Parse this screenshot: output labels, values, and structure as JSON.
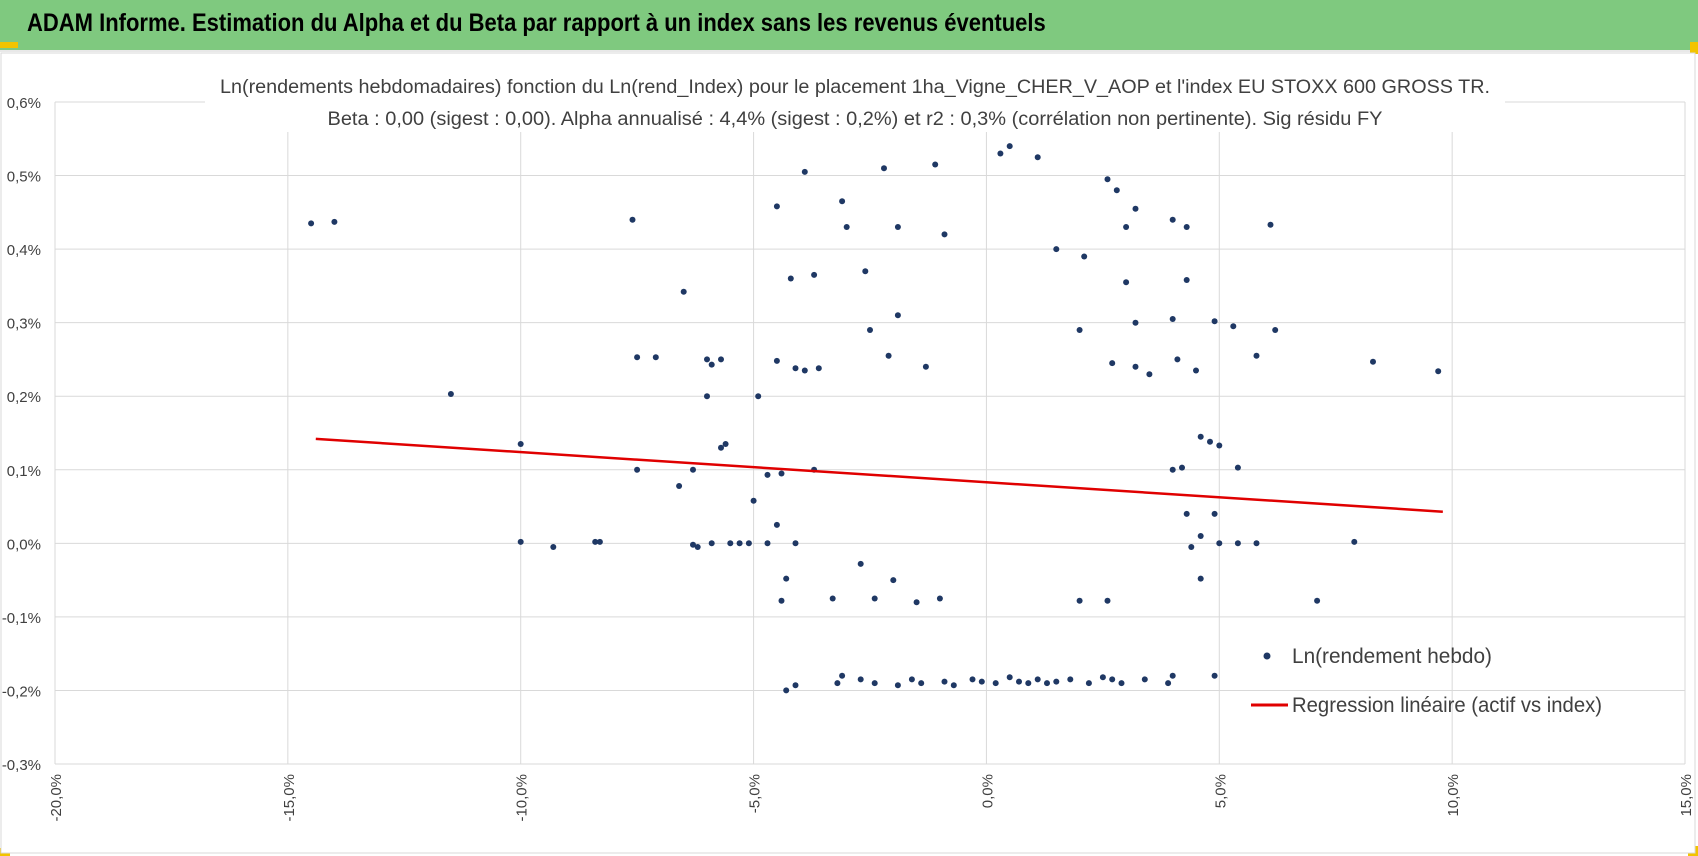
{
  "header": {
    "title": "ADAM Informe. Estimation du Alpha et du Beta par rapport à un index sans les revenus éventuels"
  },
  "colors": {
    "banner": "#7fc97f",
    "accent": "#f2c400",
    "points": "#1f3864",
    "regression": "#e00000",
    "grid": "#d9d9d9"
  },
  "chart_data": {
    "type": "scatter",
    "title_line1": "Ln(rendements hebdomadaires) fonction du Ln(rend_Index) pour le placement 1ha_Vigne_CHER_V_AOP et l'index EU STOXX 600 GROSS TR.",
    "title_line2": "Beta : 0,00 (sigest : 0,00). Alpha annualisé : 4,4% (sigest : 0,2%) et r2 : 0,3% (corrélation non pertinente). Sig résidu FY",
    "xlabel": "",
    "ylabel": "",
    "xlim": [
      -20,
      15
    ],
    "ylim": [
      -0.3,
      0.6
    ],
    "x_ticks": [
      -20,
      -15,
      -10,
      -5,
      0,
      5,
      10,
      15
    ],
    "x_tick_labels": [
      "-20,0%",
      "-15,0%",
      "-10,0%",
      "-5,0%",
      "0,0%",
      "5,0%",
      "10,0%",
      "15,0%"
    ],
    "y_ticks": [
      0.6,
      0.5,
      0.4,
      0.3,
      0.2,
      0.1,
      0.0,
      -0.1,
      -0.2,
      -0.3
    ],
    "y_tick_labels": [
      "0,6%",
      "0,5%",
      "0,4%",
      "0,3%",
      "0,2%",
      "0,1%",
      "0,0%",
      "-0,1%",
      "-0,2%",
      "-0,3%"
    ],
    "legend": [
      {
        "name": "Ln(rendement hebdo)",
        "type": "marker"
      },
      {
        "name": "Regression linéaire (actif vs index)",
        "type": "line"
      }
    ],
    "legend_position": "bottom-right",
    "regression": {
      "x": [
        -14.4,
        9.8
      ],
      "y": [
        0.142,
        0.043
      ]
    },
    "series": [
      {
        "name": "Ln(rendement hebdo)",
        "points": [
          [
            -14.5,
            0.435
          ],
          [
            -14.0,
            0.437
          ],
          [
            -7.6,
            0.44
          ],
          [
            -4.5,
            0.458
          ],
          [
            -3.9,
            0.505
          ],
          [
            -3.1,
            0.465
          ],
          [
            -2.2,
            0.51
          ],
          [
            -1.1,
            0.515
          ],
          [
            0.5,
            0.54
          ],
          [
            0.3,
            0.53
          ],
          [
            1.1,
            0.525
          ],
          [
            2.6,
            0.495
          ],
          [
            2.8,
            0.48
          ],
          [
            3.2,
            0.455
          ],
          [
            3.0,
            0.43
          ],
          [
            4.0,
            0.44
          ],
          [
            4.3,
            0.43
          ],
          [
            6.1,
            0.433
          ],
          [
            -6.5,
            0.342
          ],
          [
            -4.2,
            0.36
          ],
          [
            -3.7,
            0.365
          ],
          [
            -3.0,
            0.43
          ],
          [
            -2.6,
            0.37
          ],
          [
            -1.9,
            0.43
          ],
          [
            -0.9,
            0.42
          ],
          [
            1.5,
            0.4
          ],
          [
            2.1,
            0.39
          ],
          [
            3.0,
            0.355
          ],
          [
            4.3,
            0.358
          ],
          [
            4.0,
            0.305
          ],
          [
            3.2,
            0.3
          ],
          [
            2.0,
            0.29
          ],
          [
            -1.9,
            0.31
          ],
          [
            -2.5,
            0.29
          ],
          [
            4.9,
            0.302
          ],
          [
            5.3,
            0.295
          ],
          [
            6.2,
            0.29
          ],
          [
            -11.5,
            0.203
          ],
          [
            -7.5,
            0.253
          ],
          [
            -7.1,
            0.253
          ],
          [
            -6.0,
            0.25
          ],
          [
            -5.9,
            0.243
          ],
          [
            -5.7,
            0.25
          ],
          [
            -4.9,
            0.2
          ],
          [
            -6.0,
            0.2
          ],
          [
            -4.5,
            0.248
          ],
          [
            -4.1,
            0.238
          ],
          [
            -3.9,
            0.235
          ],
          [
            -3.6,
            0.238
          ],
          [
            5.8,
            0.255
          ],
          [
            8.3,
            0.247
          ],
          [
            9.7,
            0.234
          ],
          [
            4.5,
            0.235
          ],
          [
            4.1,
            0.25
          ],
          [
            3.5,
            0.23
          ],
          [
            3.2,
            0.24
          ],
          [
            2.7,
            0.245
          ],
          [
            -2.1,
            0.255
          ],
          [
            -1.3,
            0.24
          ],
          [
            -10.0,
            0.135
          ],
          [
            -5.7,
            0.13
          ],
          [
            -5.6,
            0.135
          ],
          [
            -7.5,
            0.1
          ],
          [
            -6.3,
            0.1
          ],
          [
            -6.6,
            0.078
          ],
          [
            -5.0,
            0.058
          ],
          [
            -4.7,
            0.093
          ],
          [
            -4.4,
            0.095
          ],
          [
            -3.7,
            0.1
          ],
          [
            4.0,
            0.1
          ],
          [
            4.2,
            0.103
          ],
          [
            4.6,
            0.145
          ],
          [
            4.8,
            0.138
          ],
          [
            5.0,
            0.133
          ],
          [
            5.4,
            0.103
          ],
          [
            4.9,
            0.04
          ],
          [
            4.3,
            0.04
          ],
          [
            -4.5,
            0.025
          ],
          [
            -10.0,
            0.002
          ],
          [
            -9.3,
            -0.005
          ],
          [
            -8.4,
            0.002
          ],
          [
            -8.3,
            0.002
          ],
          [
            -6.3,
            -0.002
          ],
          [
            -6.2,
            -0.005
          ],
          [
            -5.9,
            0.0
          ],
          [
            -5.5,
            0.0
          ],
          [
            -5.3,
            0.0
          ],
          [
            -5.1,
            0.0
          ],
          [
            -4.7,
            0.0
          ],
          [
            -4.1,
            0.0
          ],
          [
            5.0,
            0.0
          ],
          [
            5.4,
            0.0
          ],
          [
            5.8,
            0.0
          ],
          [
            7.9,
            0.002
          ],
          [
            4.6,
            0.01
          ],
          [
            4.4,
            -0.005
          ],
          [
            -4.4,
            -0.078
          ],
          [
            -3.3,
            -0.075
          ],
          [
            -2.4,
            -0.075
          ],
          [
            -2.0,
            -0.05
          ],
          [
            -1.5,
            -0.08
          ],
          [
            -1.0,
            -0.075
          ],
          [
            2.0,
            -0.078
          ],
          [
            2.6,
            -0.078
          ],
          [
            4.6,
            -0.048
          ],
          [
            7.1,
            -0.078
          ],
          [
            -4.3,
            -0.048
          ],
          [
            -2.7,
            -0.028
          ],
          [
            -4.3,
            -0.2
          ],
          [
            -4.1,
            -0.193
          ],
          [
            -3.2,
            -0.19
          ],
          [
            -3.1,
            -0.18
          ],
          [
            -2.7,
            -0.185
          ],
          [
            -2.4,
            -0.19
          ],
          [
            -1.9,
            -0.193
          ],
          [
            -1.6,
            -0.185
          ],
          [
            -1.4,
            -0.19
          ],
          [
            -0.9,
            -0.188
          ],
          [
            -0.7,
            -0.193
          ],
          [
            -0.3,
            -0.185
          ],
          [
            -0.1,
            -0.188
          ],
          [
            0.2,
            -0.19
          ],
          [
            0.5,
            -0.182
          ],
          [
            0.7,
            -0.188
          ],
          [
            0.9,
            -0.19
          ],
          [
            1.1,
            -0.185
          ],
          [
            1.3,
            -0.19
          ],
          [
            1.5,
            -0.188
          ],
          [
            1.8,
            -0.185
          ],
          [
            2.2,
            -0.19
          ],
          [
            2.5,
            -0.182
          ],
          [
            2.7,
            -0.185
          ],
          [
            2.9,
            -0.19
          ],
          [
            3.4,
            -0.185
          ],
          [
            3.9,
            -0.19
          ],
          [
            4.0,
            -0.18
          ],
          [
            4.9,
            -0.18
          ]
        ]
      }
    ]
  }
}
